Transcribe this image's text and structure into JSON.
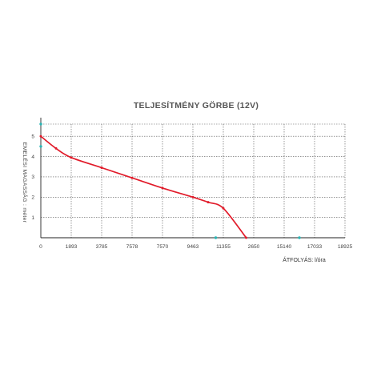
{
  "chart_data": {
    "type": "line",
    "title": "TELJESÍTMÉNY GÖRBE (12V)",
    "xlabel": "ÁTFOLYÁS: l/óra",
    "ylabel": "EMELÉSI MAGASSÁG : méter",
    "x_tick_labels": [
      "0",
      "1893",
      "3785",
      "7578",
      "7570",
      "9463",
      "11355",
      "2650",
      "15140",
      "17033",
      "18925"
    ],
    "y_tick_labels": [
      "1",
      "2",
      "3",
      "4",
      "5"
    ],
    "ylim": [
      0,
      5.6
    ],
    "grid": true,
    "series": [
      {
        "x": [
          0,
          946,
          1893,
          3785,
          5678,
          7570,
          9463,
          10409,
          11355,
          12774
        ],
        "y": [
          5.0,
          4.4,
          3.95,
          3.45,
          2.95,
          2.45,
          2.0,
          1.75,
          1.45,
          0.0
        ]
      }
    ],
    "markers": [
      {
        "x": 0,
        "y": 5.6
      },
      {
        "x": 0,
        "y": 4.5
      },
      {
        "x": 10883,
        "y": 0
      },
      {
        "x": 16087,
        "y": 0
      }
    ]
  },
  "colors": {
    "line": "#e11b2a",
    "marker": "#2bb5b5",
    "grid": "#555555",
    "axis": "#222222"
  }
}
